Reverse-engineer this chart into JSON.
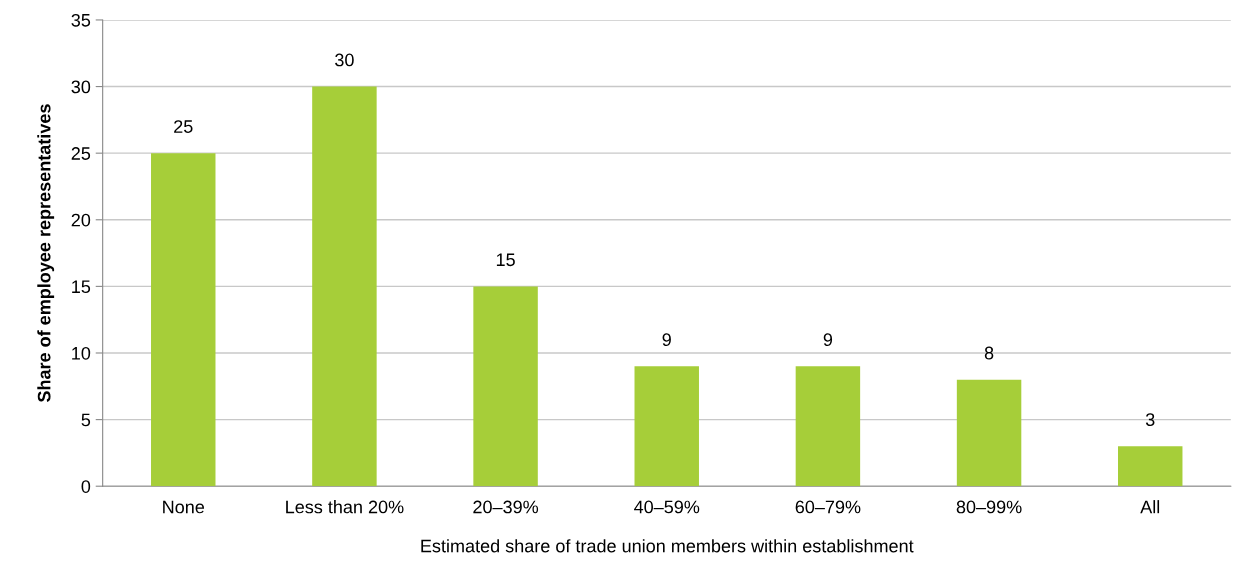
{
  "chart_data": {
    "type": "bar",
    "xlabel": "Estimated share of trade union members within establishment",
    "ylabel": "Share of employee representatives",
    "categories": [
      "None",
      "Less than 20%",
      "20–39%",
      "40–59%",
      "60–79%",
      "80–99%",
      "All"
    ],
    "values": [
      25,
      30,
      15,
      9,
      9,
      8,
      3
    ],
    "color": "#a6ce39",
    "ylim": [
      0,
      35
    ],
    "yticks": [
      0,
      5,
      10,
      15,
      20,
      25,
      30,
      35
    ],
    "grid": "y",
    "data_labels": true,
    "legend": false
  }
}
